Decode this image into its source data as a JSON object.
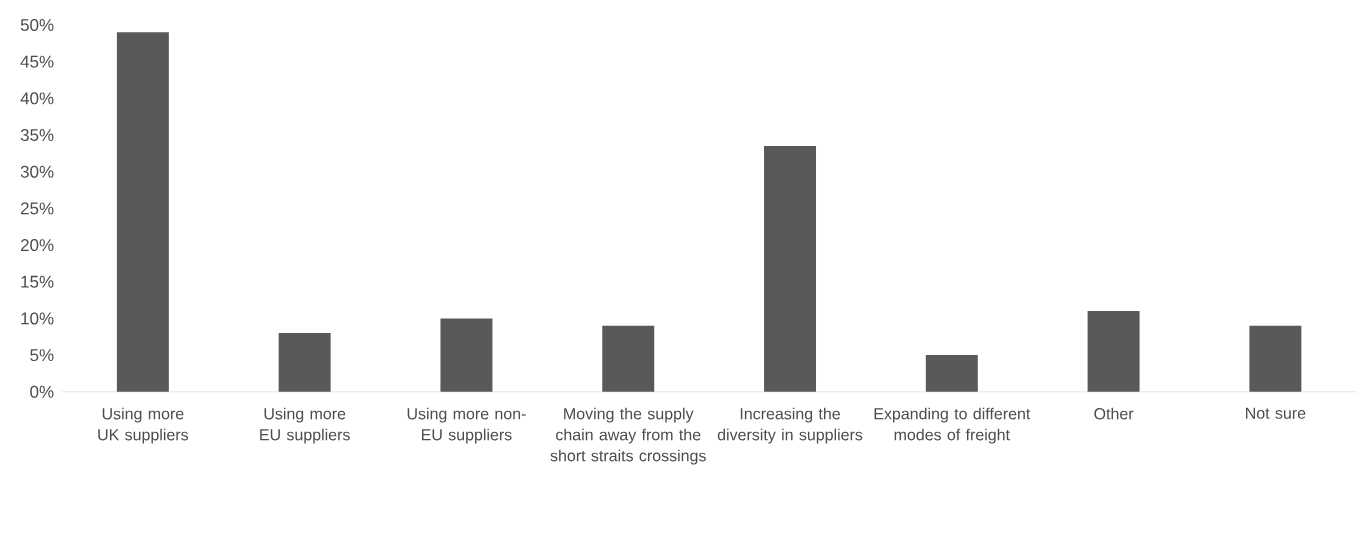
{
  "chart_data": {
    "type": "bar",
    "categories": [
      "Using more UK suppliers",
      "Using more EU suppliers",
      "Using more non-EU suppliers",
      "Moving the supply chain away from the short straits crossings",
      "Increasing the diversity in suppliers",
      "Expanding to different modes of freight",
      "Other",
      "Not sure"
    ],
    "values": [
      49,
      8,
      10,
      9,
      33.5,
      5,
      11,
      9
    ],
    "color": "#595959",
    "ylim": [
      0,
      50
    ],
    "yticks": [
      {
        "value": 0,
        "label": "0%"
      },
      {
        "value": 5,
        "label": "5%"
      },
      {
        "value": 10,
        "label": "10%"
      },
      {
        "value": 15,
        "label": "15%"
      },
      {
        "value": 20,
        "label": "20%"
      },
      {
        "value": 25,
        "label": "25%"
      },
      {
        "value": 30,
        "label": "30%"
      },
      {
        "value": 35,
        "label": "35%"
      },
      {
        "value": 40,
        "label": "40%"
      },
      {
        "value": 45,
        "label": "45%"
      },
      {
        "value": 50,
        "label": "50%"
      }
    ],
    "grid": false
  }
}
